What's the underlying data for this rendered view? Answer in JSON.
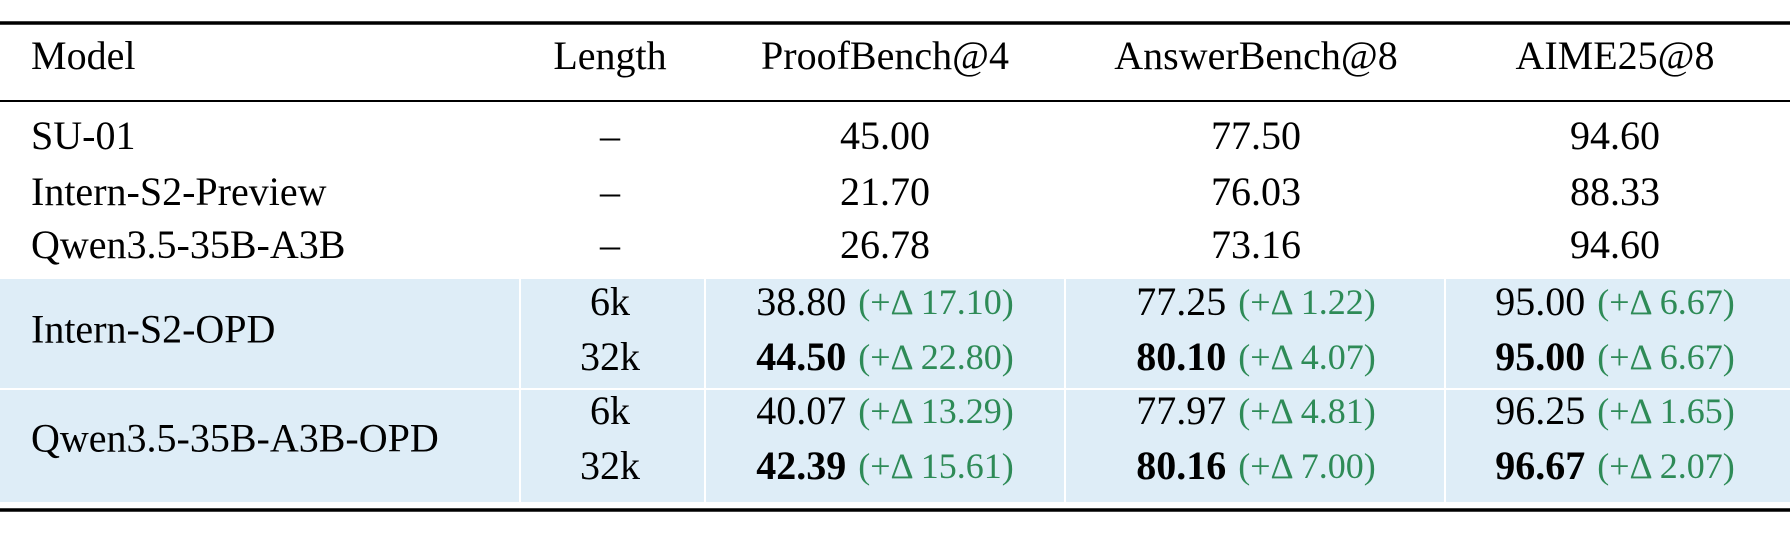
{
  "table": {
    "header": [
      "Model",
      "Length",
      "ProofBench@4",
      "AnswerBench@8",
      "AIME25@8"
    ],
    "rows": [
      {
        "model": "SU-01",
        "highlight": false,
        "entries": [
          {
            "length": "–",
            "scores": [
              {
                "value": "45.00",
                "bold": false
              },
              {
                "value": "77.50",
                "bold": false
              },
              {
                "value": "94.60",
                "bold": false
              }
            ]
          }
        ]
      },
      {
        "model": "Intern-S2-Preview",
        "highlight": false,
        "entries": [
          {
            "length": "–",
            "scores": [
              {
                "value": "21.70",
                "bold": false
              },
              {
                "value": "76.03",
                "bold": false
              },
              {
                "value": "88.33",
                "bold": false
              }
            ]
          }
        ]
      },
      {
        "model": "Qwen3.5-35B-A3B",
        "highlight": false,
        "entries": [
          {
            "length": "–",
            "scores": [
              {
                "value": "26.78",
                "bold": false
              },
              {
                "value": "73.16",
                "bold": false
              },
              {
                "value": "94.60",
                "bold": false
              }
            ]
          }
        ]
      },
      {
        "model": "Intern-S2-OPD",
        "highlight": true,
        "entries": [
          {
            "length": "6k",
            "scores": [
              {
                "value": "38.80",
                "delta": "(+Δ 17.10)",
                "bold": false
              },
              {
                "value": "77.25",
                "delta": "(+Δ 1.22)",
                "bold": false
              },
              {
                "value": "95.00",
                "delta": "(+Δ 6.67)",
                "bold": false
              }
            ]
          },
          {
            "length": "32k",
            "scores": [
              {
                "value": "44.50",
                "delta": "(+Δ 22.80)",
                "bold": true
              },
              {
                "value": "80.10",
                "delta": "(+Δ 4.07)",
                "bold": true
              },
              {
                "value": "95.00",
                "delta": "(+Δ 6.67)",
                "bold": true
              }
            ]
          }
        ]
      },
      {
        "model": "Qwen3.5-35B-A3B-OPD",
        "highlight": true,
        "entries": [
          {
            "length": "6k",
            "scores": [
              {
                "value": "40.07",
                "delta": "(+Δ 13.29)",
                "bold": false
              },
              {
                "value": "77.97",
                "delta": "(+Δ 4.81)",
                "bold": false
              },
              {
                "value": "96.25",
                "delta": "(+Δ 1.65)",
                "bold": false
              }
            ]
          },
          {
            "length": "32k",
            "scores": [
              {
                "value": "42.39",
                "delta": "(+Δ 15.61)",
                "bold": true
              },
              {
                "value": "80.16",
                "delta": "(+Δ 7.00)",
                "bold": true
              },
              {
                "value": "96.67",
                "delta": "(+Δ 2.07)",
                "bold": true
              }
            ]
          }
        ]
      }
    ]
  }
}
